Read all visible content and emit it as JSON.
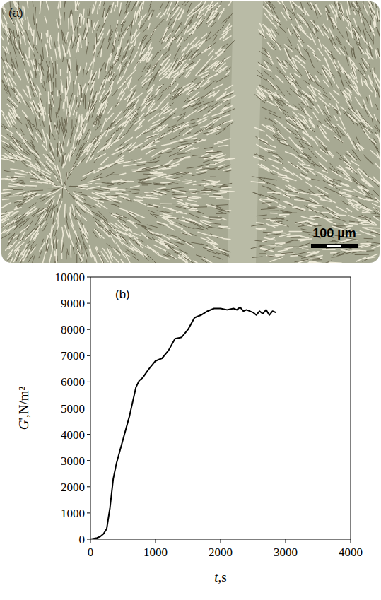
{
  "image": {
    "label": "(a)",
    "scale_bar": "100 µm"
  },
  "chart_data": {
    "type": "line",
    "annotations": [
      "(b)"
    ],
    "x_label": "t,s",
    "y_label": "G',N/m²",
    "x": [
      0,
      100,
      150,
      200,
      250,
      300,
      350,
      400,
      500,
      600,
      700,
      750,
      800,
      900,
      1000,
      1100,
      1200,
      1300,
      1400,
      1500,
      1600,
      1700,
      1800,
      1900,
      2000,
      2100,
      2200,
      2250,
      2300,
      2350,
      2400,
      2500,
      2550,
      2600,
      2650,
      2700,
      2750,
      2800,
      2850
    ],
    "values": [
      0,
      50,
      100,
      200,
      400,
      1200,
      2300,
      2900,
      3800,
      4700,
      5800,
      6050,
      6150,
      6500,
      6800,
      6900,
      7200,
      7650,
      7700,
      8000,
      8450,
      8550,
      8700,
      8800,
      8800,
      8750,
      8800,
      8750,
      8850,
      8700,
      8750,
      8650,
      8550,
      8700,
      8600,
      8750,
      8550,
      8700,
      8650
    ],
    "color": "#000000",
    "xlim": [
      0,
      4000
    ],
    "xticks": [
      0,
      1000,
      2000,
      3000,
      4000
    ],
    "ylim": [
      0,
      10000
    ],
    "yticks": [
      0,
      1000,
      2000,
      3000,
      4000,
      5000,
      6000,
      7000,
      8000,
      9000,
      10000
    ],
    "grid": false
  }
}
